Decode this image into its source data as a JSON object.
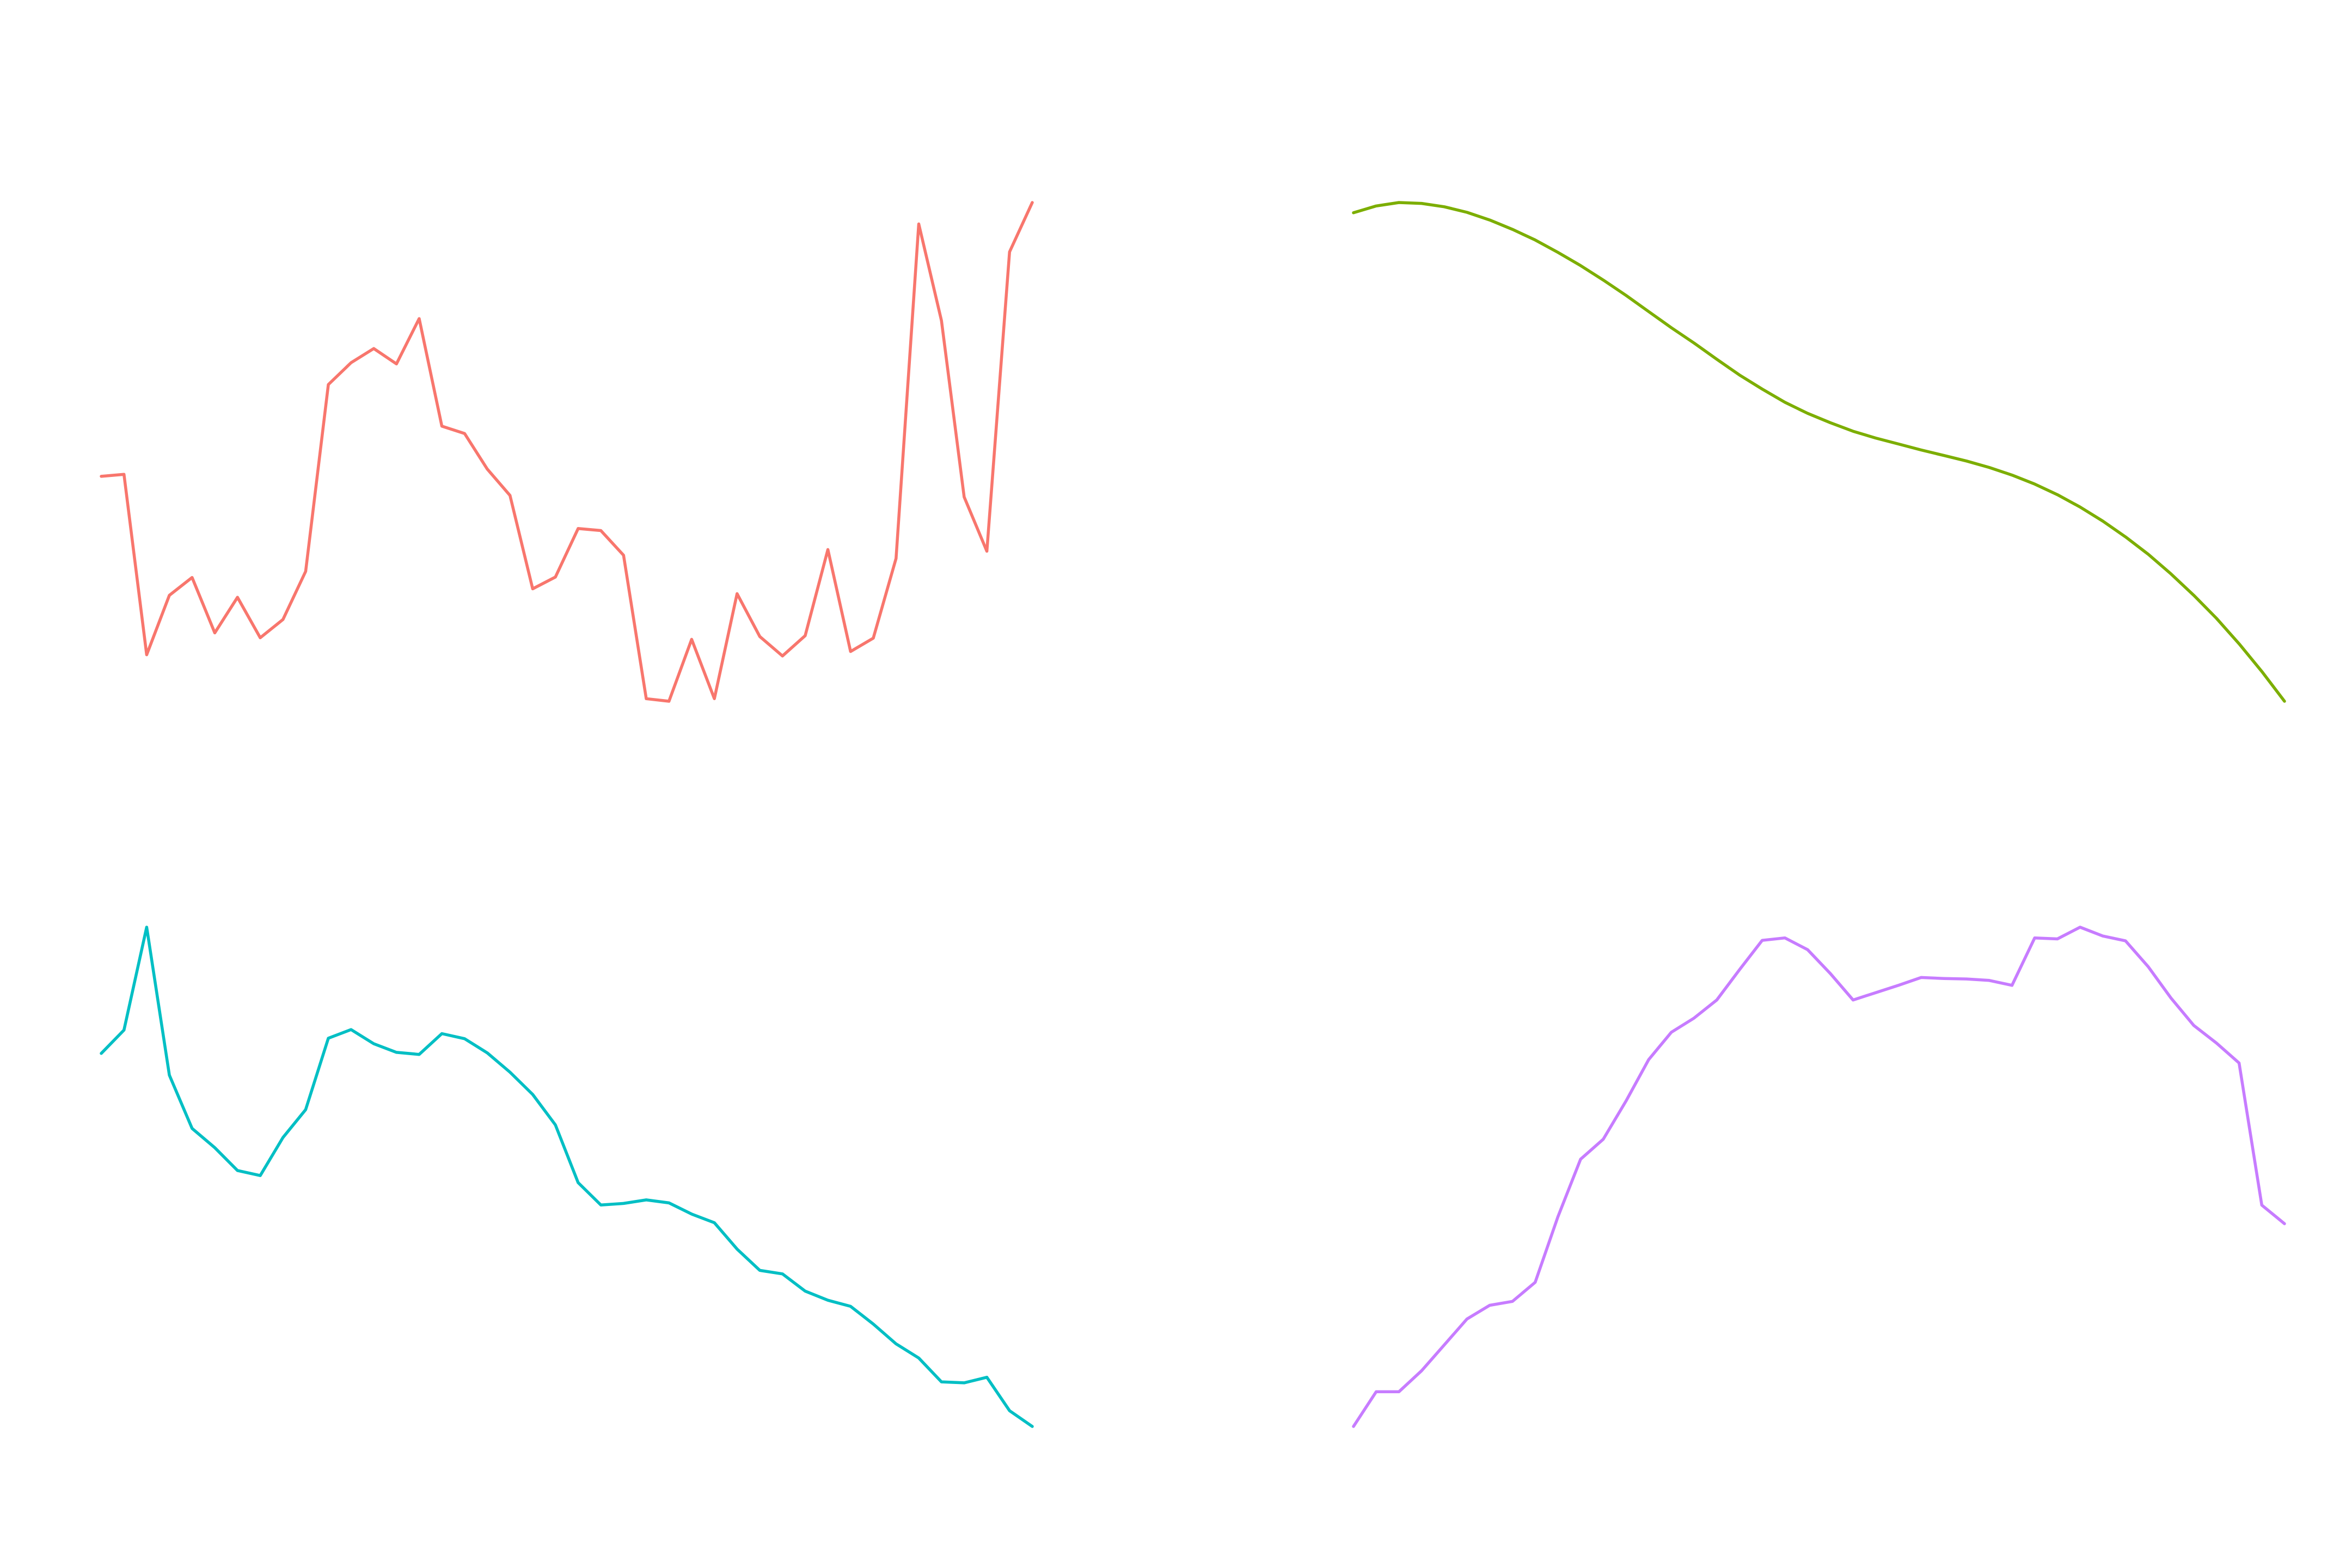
{
  "chart_data": [
    {
      "type": "line",
      "title": "",
      "xlabel": "",
      "ylabel": "",
      "grid": false,
      "legend": "none",
      "color": "#F8766D",
      "x": [
        1,
        2,
        3,
        4,
        5,
        6,
        7,
        8,
        9,
        10,
        11,
        12,
        13,
        14,
        15,
        16,
        17,
        18,
        19,
        20,
        21,
        22,
        23,
        24,
        25,
        26,
        27,
        28,
        29,
        30,
        31,
        32,
        33,
        34,
        35,
        36,
        37,
        38,
        39,
        40,
        41,
        42
      ],
      "values": [
        0.556,
        0.561,
        0.115,
        0.262,
        0.306,
        0.169,
        0.257,
        0.157,
        0.202,
        0.321,
        0.783,
        0.837,
        0.872,
        0.834,
        0.946,
        0.68,
        0.662,
        0.574,
        0.509,
        0.278,
        0.307,
        0.427,
        0.422,
        0.361,
        0.0063,
        0.0,
        0.153,
        0.0063,
        0.266,
        0.16,
        0.112,
        0.162,
        0.375,
        0.123,
        0.156,
        0.353,
        1.18,
        0.941,
        0.505,
        0.371,
        1.111,
        1.233
      ],
      "ylim": [
        0.0,
        1.233
      ]
    },
    {
      "type": "line",
      "title": "",
      "xlabel": "",
      "ylabel": "",
      "grid": false,
      "legend": "none",
      "color": "#7CAE00",
      "x": [
        1,
        2,
        3,
        4,
        5,
        6,
        7,
        8,
        9,
        10,
        11,
        12,
        13,
        14,
        15,
        16,
        17,
        18,
        19,
        20,
        21,
        22,
        23,
        24,
        25,
        26,
        27,
        28,
        29,
        30,
        31,
        32,
        33,
        34,
        35,
        36,
        37,
        38,
        39,
        40,
        41,
        42
      ],
      "values": [
        1.0,
        1.016,
        1.024,
        1.022,
        1.014,
        1.001,
        0.983,
        0.961,
        0.936,
        0.907,
        0.876,
        0.842,
        0.806,
        0.768,
        0.73,
        0.694,
        0.656,
        0.619,
        0.586,
        0.555,
        0.529,
        0.507,
        0.487,
        0.471,
        0.457,
        0.443,
        0.43,
        0.417,
        0.402,
        0.384,
        0.363,
        0.338,
        0.309,
        0.276,
        0.239,
        0.198,
        0.152,
        0.102,
        0.048,
        -0.012,
        -0.077,
        -0.147
      ],
      "ylim": [
        -0.147,
        1.024
      ]
    },
    {
      "type": "line",
      "title": "",
      "xlabel": "",
      "ylabel": "",
      "grid": false,
      "legend": "none",
      "color": "#00BFC4",
      "x": [
        1,
        2,
        3,
        4,
        5,
        6,
        7,
        8,
        9,
        10,
        11,
        12,
        13,
        14,
        15,
        16,
        17,
        18,
        19,
        20,
        21,
        22,
        23,
        24,
        25,
        26,
        27,
        28,
        29,
        30,
        31,
        32,
        33,
        34,
        35,
        36,
        37,
        38,
        39,
        40,
        41,
        42
      ],
      "values": [
        0.751,
        0.797,
        1.0,
        0.708,
        0.603,
        0.565,
        0.52,
        0.51,
        0.585,
        0.64,
        0.781,
        0.798,
        0.77,
        0.753,
        0.749,
        0.79,
        0.78,
        0.752,
        0.714,
        0.67,
        0.61,
        0.496,
        0.452,
        0.455,
        0.462,
        0.456,
        0.434,
        0.417,
        0.365,
        0.323,
        0.316,
        0.282,
        0.264,
        0.252,
        0.217,
        0.178,
        0.15,
        0.103,
        0.101,
        0.112,
        0.046,
        0.015
      ],
      "ylim": [
        0.015,
        1.0
      ]
    },
    {
      "type": "line",
      "title": "",
      "xlabel": "",
      "ylabel": "",
      "grid": false,
      "legend": "none",
      "color": "#C77CFF",
      "x": [
        1,
        2,
        3,
        4,
        5,
        6,
        7,
        8,
        9,
        10,
        11,
        12,
        13,
        14,
        15,
        16,
        17,
        18,
        19,
        20,
        21,
        22,
        23,
        24,
        25,
        26,
        27,
        28,
        29,
        30,
        31,
        32,
        33,
        34,
        35,
        36,
        37,
        38,
        39,
        40,
        41,
        42
      ],
      "values": [
        0.0,
        0.071,
        0.071,
        0.114,
        0.167,
        0.22,
        0.248,
        0.256,
        0.295,
        0.429,
        0.547,
        0.588,
        0.666,
        0.751,
        0.807,
        0.836,
        0.873,
        0.935,
        0.995,
        1.0,
        0.976,
        0.927,
        0.873,
        0.888,
        0.903,
        0.919,
        0.917,
        0.916,
        0.913,
        0.903,
        1.0,
        0.998,
        1.022,
        1.004,
        0.994,
        0.941,
        0.877,
        0.821,
        0.785,
        0.744,
        0.453,
        0.415
      ],
      "ylim": [
        0.0,
        1.022
      ]
    }
  ]
}
